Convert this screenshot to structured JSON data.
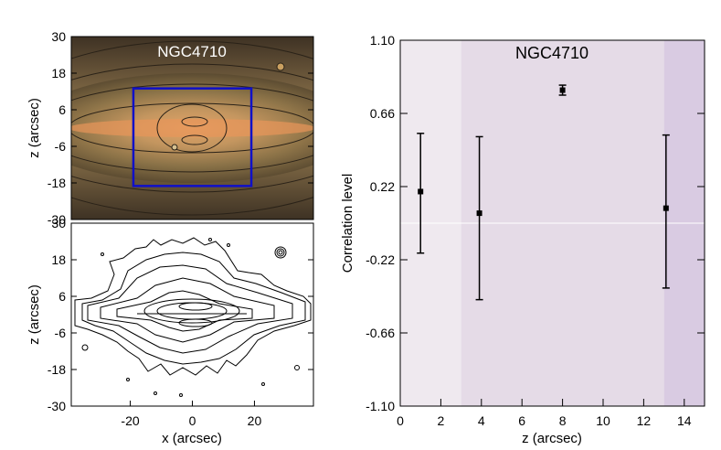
{
  "chart_data": [
    {
      "type": "image",
      "title": "NGC4710",
      "ylabel": "z (arcsec)",
      "ylim": [
        -30,
        30
      ],
      "yticks": [
        "30",
        "18",
        "6",
        "-6",
        "-18",
        "-30"
      ],
      "xlim": [
        -39,
        39
      ],
      "box": {
        "x": [
          -19,
          19
        ],
        "z": [
          -19,
          13
        ],
        "color": "#1010c8"
      }
    },
    {
      "type": "contour",
      "title": "",
      "xlabel": "x (arcsec)",
      "ylabel": "z (arcsec)",
      "xlim": [
        -39,
        39
      ],
      "ylim": [
        -30,
        30
      ],
      "xticks": [
        "-20",
        "0",
        "20"
      ],
      "yticks": [
        "30",
        "18",
        "6",
        "-6",
        "-18",
        "-30"
      ]
    },
    {
      "type": "scatter",
      "title": "NGC4710",
      "xlabel": "z (arcsec)",
      "ylabel": "Correlation level",
      "xlim": [
        0,
        15
      ],
      "ylim": [
        -1.1,
        1.1
      ],
      "xticks": [
        "0",
        "2",
        "4",
        "6",
        "8",
        "10",
        "12",
        "14"
      ],
      "yticks": [
        "1.10",
        "0.66",
        "0.22",
        "-0.22",
        "-0.66",
        "-1.10"
      ],
      "zero_line": 0.0,
      "bands": [
        {
          "from": 0,
          "to": 3,
          "color": "#efe9ef"
        },
        {
          "from": 3,
          "to": 13,
          "color": "#e5dbe7"
        },
        {
          "from": 13,
          "to": 15,
          "color": "#d9cbe2"
        }
      ],
      "series": [
        {
          "points": [
            {
              "x": 1.0,
              "y": 0.19,
              "err_low": -0.18,
              "err_high": 0.54
            },
            {
              "x": 3.9,
              "y": 0.06,
              "err_low": -0.46,
              "err_high": 0.52
            },
            {
              "x": 8.0,
              "y": 0.8,
              "err_low": 0.77,
              "err_high": 0.83
            },
            {
              "x": 13.1,
              "y": 0.09,
              "err_low": -0.39,
              "err_high": 0.53
            }
          ]
        }
      ]
    }
  ]
}
